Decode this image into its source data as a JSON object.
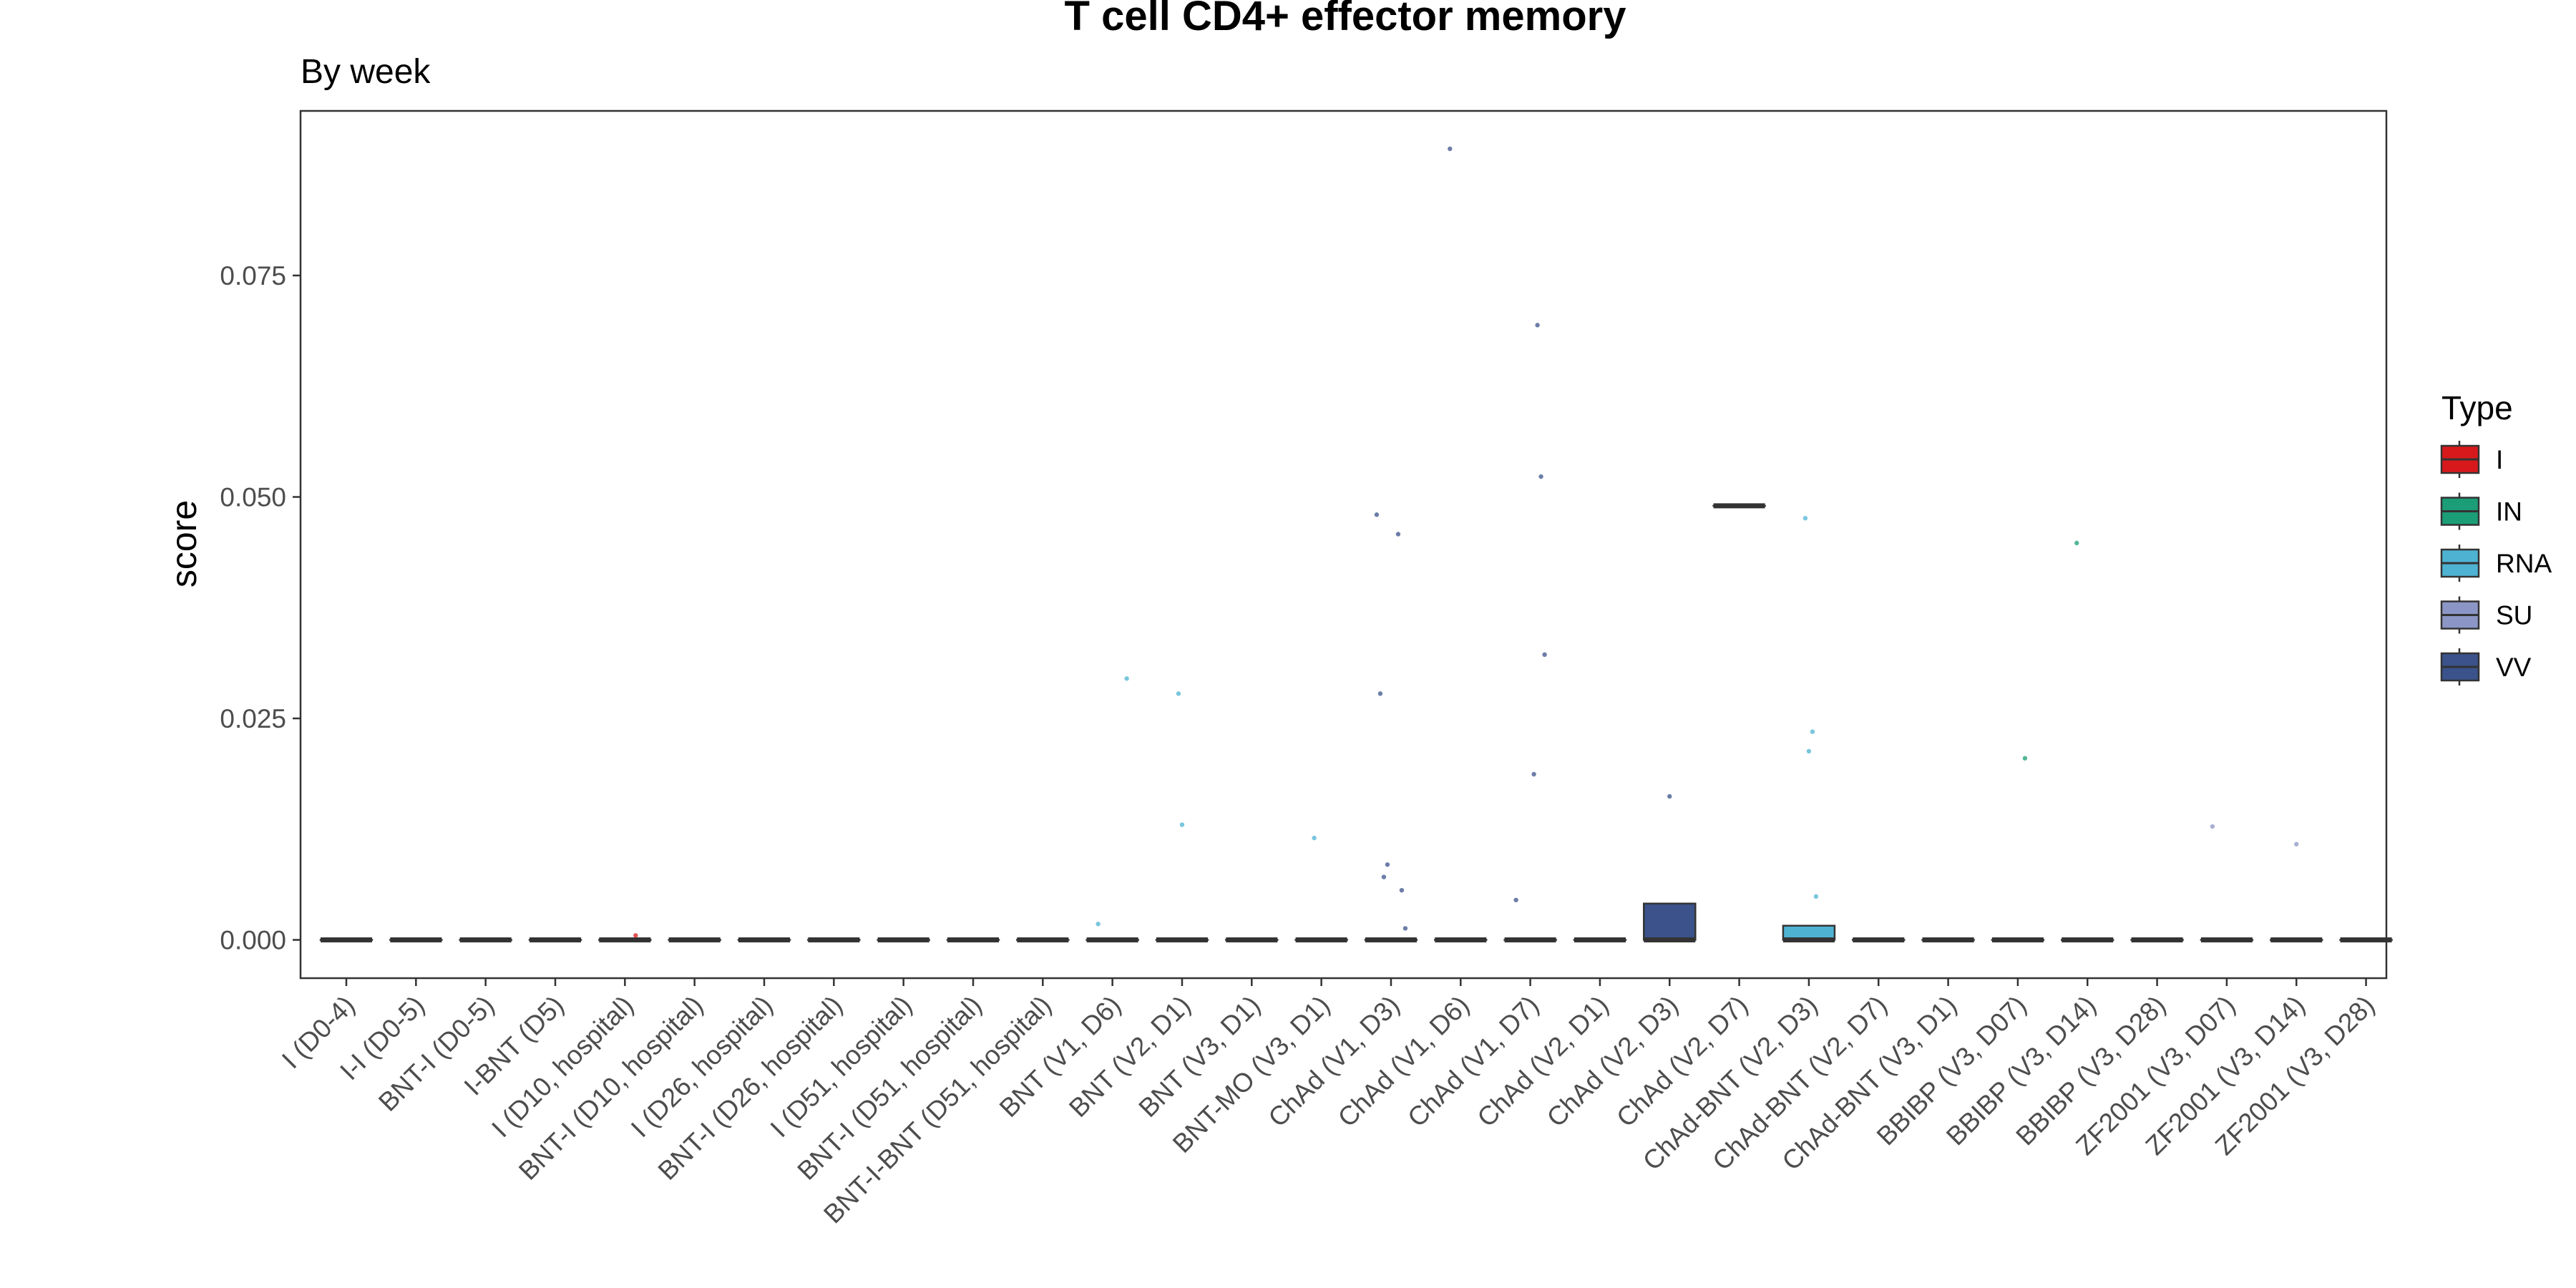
{
  "chart_data": {
    "type": "box",
    "title": "T cell CD4+ effector memory",
    "subtitle": "By week",
    "xlabel": "",
    "ylabel": "score",
    "ylim": [
      -0.0045,
      0.0935
    ],
    "yticks": [
      0.0,
      0.025,
      0.05,
      0.075
    ],
    "ytick_labels": [
      "0.000",
      "0.025",
      "0.050",
      "0.075"
    ],
    "grid": false,
    "legend": {
      "title": "Type",
      "position": "right",
      "entries": [
        {
          "label": "I",
          "color": "#d7191c"
        },
        {
          "label": "IN",
          "color": "#1b9e77"
        },
        {
          "label": "RNA",
          "color": "#4eb3d3"
        },
        {
          "label": "SU",
          "color": "#8c96c6"
        },
        {
          "label": "VV",
          "color": "#3b528b"
        }
      ]
    },
    "categories": [
      "I (D0-4)",
      "I-I (D0-5)",
      "BNT-I (D0-5)",
      "I-BNT (D5)",
      "I (D10, hospital)",
      "BNT-I (D10, hospital)",
      "I (D26, hospital)",
      "BNT-I (D26, hospital)",
      "I (D51, hospital)",
      "BNT-I (D51, hospital)",
      "BNT-I-BNT (D51, hospital)",
      "BNT (V1, D6)",
      "BNT (V2, D1)",
      "BNT (V3, D1)",
      "BNT-MO (V3, D1)",
      "ChAd (V1, D3)",
      "ChAd (V1, D6)",
      "ChAd (V1, D7)",
      "ChAd (V2, D1)",
      "ChAd (V2, D3)",
      "ChAd (V2, D7)",
      "ChAd-BNT (V2, D3)",
      "ChAd-BNT (V2, D7)",
      "ChAd-BNT (V3, D1)",
      "BBIBP (V3, D07)",
      "BBIBP (V3, D14)",
      "BBIBP (V3, D28)",
      "ZF2001 (V3, D07)",
      "ZF2001 (V3, D14)",
      "ZF2001 (V3, D28)"
    ],
    "series": [
      {
        "category": "I (D0-4)",
        "type": "I",
        "q1": 0,
        "median": 0,
        "q3": 0,
        "whisker_low": 0,
        "whisker_high": 0,
        "outliers": []
      },
      {
        "category": "I-I (D0-5)",
        "type": "I",
        "q1": 0,
        "median": 0,
        "q3": 0,
        "whisker_low": 0,
        "whisker_high": 0,
        "outliers": []
      },
      {
        "category": "BNT-I (D0-5)",
        "type": "I",
        "q1": 0,
        "median": 0,
        "q3": 0,
        "whisker_low": 0,
        "whisker_high": 0,
        "outliers": []
      },
      {
        "category": "I-BNT (D5)",
        "type": "I",
        "q1": 0,
        "median": 0,
        "q3": 0,
        "whisker_low": 0,
        "whisker_high": 0,
        "outliers": []
      },
      {
        "category": "I (D10, hospital)",
        "type": "I",
        "q1": 0,
        "median": 0,
        "q3": 0,
        "whisker_low": 0,
        "whisker_high": 0,
        "outliers": [
          0.0005
        ]
      },
      {
        "category": "BNT-I (D10, hospital)",
        "type": "I",
        "q1": 0,
        "median": 0,
        "q3": 0,
        "whisker_low": 0,
        "whisker_high": 0,
        "outliers": []
      },
      {
        "category": "I (D26, hospital)",
        "type": "I",
        "q1": 0,
        "median": 0,
        "q3": 0,
        "whisker_low": 0,
        "whisker_high": 0,
        "outliers": []
      },
      {
        "category": "BNT-I (D26, hospital)",
        "type": "I",
        "q1": 0,
        "median": 0,
        "q3": 0,
        "whisker_low": 0,
        "whisker_high": 0,
        "outliers": []
      },
      {
        "category": "I (D51, hospital)",
        "type": "I",
        "q1": 0,
        "median": 0,
        "q3": 0,
        "whisker_low": 0,
        "whisker_high": 0,
        "outliers": []
      },
      {
        "category": "BNT-I (D51, hospital)",
        "type": "I",
        "q1": 0,
        "median": 0,
        "q3": 0,
        "whisker_low": 0,
        "whisker_high": 0,
        "outliers": []
      },
      {
        "category": "BNT-I-BNT (D51, hospital)",
        "type": "I",
        "q1": 0,
        "median": 0,
        "q3": 0,
        "whisker_low": 0,
        "whisker_high": 0,
        "outliers": []
      },
      {
        "category": "BNT (V1, D6)",
        "type": "RNA",
        "q1": 0,
        "median": 0,
        "q3": 0,
        "whisker_low": 0,
        "whisker_high": 0,
        "outliers": [
          0.0295,
          0.0018
        ]
      },
      {
        "category": "BNT (V2, D1)",
        "type": "RNA",
        "q1": 0,
        "median": 0,
        "q3": 0,
        "whisker_low": 0,
        "whisker_high": 0,
        "outliers": [
          0.0278,
          0.013
        ]
      },
      {
        "category": "BNT (V3, D1)",
        "type": "RNA",
        "q1": 0,
        "median": 0,
        "q3": 0,
        "whisker_low": 0,
        "whisker_high": 0,
        "outliers": []
      },
      {
        "category": "BNT-MO (V3, D1)",
        "type": "RNA",
        "q1": 0,
        "median": 0,
        "q3": 0,
        "whisker_low": 0,
        "whisker_high": 0,
        "outliers": [
          0.0115
        ]
      },
      {
        "category": "ChAd (V1, D3)",
        "type": "VV",
        "q1": 0,
        "median": 0,
        "q3": 0,
        "whisker_low": 0,
        "whisker_high": 0,
        "outliers": [
          0.0458,
          0.0056,
          0.0013,
          0.048,
          0.0278,
          0.0071,
          0.0085
        ]
      },
      {
        "category": "ChAd (V1, D6)",
        "type": "VV",
        "q1": 0,
        "median": 0,
        "q3": 0,
        "whisker_low": 0,
        "whisker_high": 0,
        "outliers": [
          0.0893
        ]
      },
      {
        "category": "ChAd (V1, D7)",
        "type": "VV",
        "q1": 0,
        "median": 0,
        "q3": 0,
        "whisker_low": 0,
        "whisker_high": 0,
        "outliers": [
          0.0187,
          0.0694,
          0.0523,
          0.0322,
          0.0045
        ]
      },
      {
        "category": "ChAd (V2, D1)",
        "type": "VV",
        "q1": 0,
        "median": 0,
        "q3": 0,
        "whisker_low": 0,
        "whisker_high": 0,
        "outliers": []
      },
      {
        "category": "ChAd (V2, D3)",
        "type": "VV",
        "q1": 0,
        "median": 0,
        "q3": 0.0041,
        "whisker_low": 0,
        "whisker_high": 0.0041,
        "outliers": [
          0.0162
        ]
      },
      {
        "category": "ChAd (V2, D7)",
        "type": "VV",
        "q1": 0.049,
        "median": 0.049,
        "q3": 0.049,
        "whisker_low": 0.049,
        "whisker_high": 0.049,
        "outliers": []
      },
      {
        "category": "ChAd-BNT (V2, D3)",
        "type": "RNA",
        "q1": 0,
        "median": 0,
        "q3": 0.0016,
        "whisker_low": 0,
        "whisker_high": 0.0016,
        "outliers": [
          0.0476,
          0.0213,
          0.0235,
          0.0049
        ]
      },
      {
        "category": "ChAd-BNT (V2, D7)",
        "type": "RNA",
        "q1": 0,
        "median": 0,
        "q3": 0,
        "whisker_low": 0,
        "whisker_high": 0,
        "outliers": []
      },
      {
        "category": "ChAd-BNT (V3, D1)",
        "type": "RNA",
        "q1": 0,
        "median": 0,
        "q3": 0,
        "whisker_low": 0,
        "whisker_high": 0,
        "outliers": []
      },
      {
        "category": "BBIBP (V3, D07)",
        "type": "IN",
        "q1": 0,
        "median": 0,
        "q3": 0,
        "whisker_low": 0,
        "whisker_high": 0,
        "outliers": [
          0.0205
        ]
      },
      {
        "category": "BBIBP (V3, D14)",
        "type": "IN",
        "q1": 0,
        "median": 0,
        "q3": 0,
        "whisker_low": 0,
        "whisker_high": 0,
        "outliers": [
          0.0448
        ]
      },
      {
        "category": "BBIBP (V3, D28)",
        "type": "IN",
        "q1": 0,
        "median": 0,
        "q3": 0,
        "whisker_low": 0,
        "whisker_high": 0,
        "outliers": []
      },
      {
        "category": "ZF2001 (V3, D07)",
        "type": "SU",
        "q1": 0,
        "median": 0,
        "q3": 0,
        "whisker_low": 0,
        "whisker_high": 0,
        "outliers": [
          0.0128
        ]
      },
      {
        "category": "ZF2001 (V3, D14)",
        "type": "SU",
        "q1": 0,
        "median": 0,
        "q3": 0,
        "whisker_low": 0,
        "whisker_high": 0,
        "outliers": [
          0.0108
        ]
      },
      {
        "category": "ZF2001 (V3, D28)",
        "type": "SU",
        "q1": 0,
        "median": 0,
        "q3": 0,
        "whisker_low": 0,
        "whisker_high": 0,
        "outliers": []
      }
    ]
  }
}
